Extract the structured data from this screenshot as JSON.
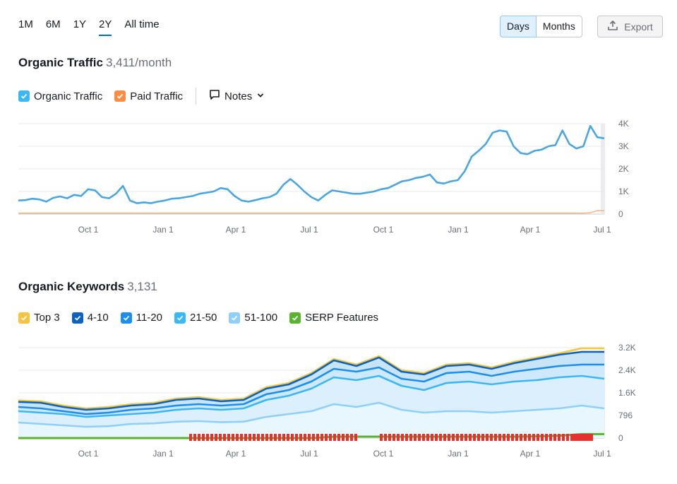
{
  "periods": [
    "1M",
    "6M",
    "1Y",
    "2Y",
    "All time"
  ],
  "active_period": "2Y",
  "granularity": {
    "days_label": "Days",
    "months_label": "Months",
    "active": "Days"
  },
  "export_label": "Export",
  "traffic": {
    "title": "Organic Traffic",
    "value": "3,411/month",
    "legend": [
      {
        "label": "Organic Traffic",
        "color": "#3ab7f5"
      },
      {
        "label": "Paid Traffic",
        "color": "#ff8c43"
      }
    ],
    "notes_label": "Notes"
  },
  "keywords": {
    "title": "Organic Keywords",
    "value": "3,131",
    "legend": [
      {
        "label": "Top 3",
        "color": "#f8c341"
      },
      {
        "label": "4-10",
        "color": "#0d62bf"
      },
      {
        "label": "11-20",
        "color": "#1b8ef0"
      },
      {
        "label": "21-50",
        "color": "#3ab7f5"
      },
      {
        "label": "51-100",
        "color": "#8ed0fa"
      },
      {
        "label": "SERP Features",
        "color": "#59b32f"
      }
    ]
  },
  "chart_data": [
    {
      "type": "line",
      "x_ticks": [
        "Oct 1",
        "Jan 1",
        "Apr 1",
        "Jul 1",
        "Oct 1",
        "Jan 1",
        "Apr 1",
        "Jul 1"
      ],
      "y_ticks": [
        "4K",
        "3K",
        "2K",
        "1K",
        "0"
      ],
      "ylim": [
        0,
        4000
      ],
      "grid": true,
      "series": [
        {
          "name": "Organic Traffic",
          "color": "#4aa5e0",
          "values": [
            600,
            620,
            680,
            650,
            550,
            720,
            780,
            700,
            850,
            800,
            1100,
            1050,
            750,
            700,
            900,
            1250,
            600,
            480,
            520,
            480,
            550,
            600,
            680,
            700,
            750,
            800,
            900,
            950,
            1000,
            1150,
            1100,
            800,
            600,
            550,
            620,
            700,
            750,
            900,
            1300,
            1550,
            1300,
            1000,
            750,
            600,
            850,
            1050,
            1000,
            950,
            900,
            900,
            950,
            1000,
            1100,
            1150,
            1300,
            1450,
            1500,
            1600,
            1650,
            1750,
            1400,
            1350,
            1450,
            1500,
            1900,
            2550,
            2800,
            3100,
            3600,
            3700,
            3650,
            3000,
            2700,
            2650,
            2800,
            2850,
            3000,
            3050,
            3700,
            3100,
            2900,
            3000,
            3900,
            3400,
            3350
          ]
        },
        {
          "name": "Paid Traffic",
          "color": "#ffb78a",
          "values": [
            40,
            40,
            40,
            40,
            40,
            40,
            40,
            40,
            40,
            40,
            40,
            40,
            40,
            40,
            40,
            40,
            40,
            40,
            40,
            40,
            40,
            40,
            40,
            40,
            40,
            40,
            40,
            40,
            40,
            40,
            40,
            40,
            40,
            40,
            40,
            40,
            40,
            40,
            40,
            40,
            40,
            40,
            40,
            40,
            40,
            40,
            40,
            40,
            40,
            40,
            40,
            40,
            40,
            40,
            40,
            40,
            40,
            40,
            40,
            40,
            40,
            40,
            40,
            40,
            40,
            40,
            40,
            40,
            40,
            40,
            40,
            40,
            40,
            40,
            40,
            40,
            40,
            40,
            40,
            40,
            40,
            40,
            60,
            150,
            150
          ]
        }
      ]
    },
    {
      "type": "area",
      "x_ticks": [
        "Oct 1",
        "Jan 1",
        "Apr 1",
        "Jul 1",
        "Oct 1",
        "Jan 1",
        "Apr 1",
        "Jul 1"
      ],
      "y_ticks": [
        "3.2K",
        "2.4K",
        "1.6K",
        "796",
        "0"
      ],
      "ylim": [
        0,
        3200
      ],
      "grid": true,
      "series": [
        {
          "name": "Top 3",
          "color": "#f0c94a",
          "values": [
            1330,
            1300,
            1150,
            1050,
            1100,
            1200,
            1250,
            1400,
            1450,
            1350,
            1400,
            1800,
            1950,
            2300,
            2800,
            2600,
            2900,
            2400,
            2300,
            2600,
            2650,
            2500,
            2700,
            2850,
            3000,
            3180,
            3180
          ]
        },
        {
          "name": "4-10",
          "color": "#0d62bf",
          "values": [
            1280,
            1250,
            1100,
            1000,
            1050,
            1150,
            1200,
            1350,
            1400,
            1300,
            1350,
            1750,
            1900,
            2250,
            2750,
            2550,
            2850,
            2350,
            2250,
            2550,
            2600,
            2450,
            2650,
            2800,
            2950,
            3050,
            3050
          ]
        },
        {
          "name": "11-20",
          "color": "#1b8ef0",
          "values": [
            1100,
            1050,
            950,
            850,
            900,
            1000,
            1050,
            1150,
            1200,
            1150,
            1200,
            1550,
            1700,
            2000,
            2450,
            2350,
            2500,
            2100,
            2000,
            2300,
            2350,
            2200,
            2350,
            2450,
            2550,
            2600,
            2600
          ]
        },
        {
          "name": "21-50",
          "color": "#3ab7f5",
          "values": [
            950,
            900,
            850,
            750,
            800,
            850,
            900,
            1000,
            1050,
            1000,
            1050,
            1350,
            1500,
            1750,
            2150,
            2050,
            2200,
            1850,
            1700,
            1950,
            2000,
            1900,
            2000,
            2050,
            2150,
            2200,
            2100
          ]
        },
        {
          "name": "51-100",
          "color": "#8ed0fa",
          "values": [
            550,
            500,
            450,
            400,
            420,
            500,
            520,
            580,
            600,
            560,
            580,
            750,
            850,
            950,
            1200,
            1100,
            1250,
            1000,
            900,
            950,
            950,
            900,
            950,
            1000,
            1050,
            1150,
            1050
          ]
        },
        {
          "name": "SERP Features",
          "color": "#59b32f",
          "values": [
            0,
            0,
            0,
            0,
            0,
            0,
            0,
            0,
            0,
            0,
            0,
            0,
            0,
            0,
            50,
            50,
            50,
            50,
            50,
            50,
            50,
            50,
            50,
            60,
            80,
            140,
            140
          ]
        }
      ]
    }
  ]
}
